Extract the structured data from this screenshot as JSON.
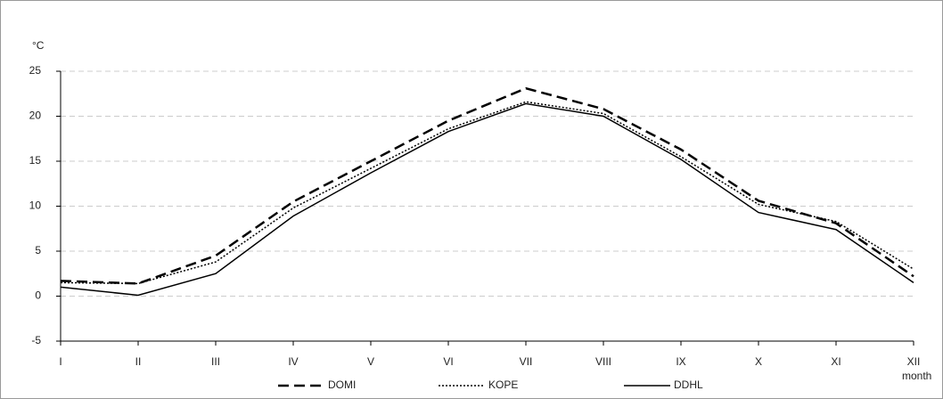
{
  "chart_data": {
    "type": "line",
    "y_label": "°C",
    "x_label": "month",
    "categories": [
      "I",
      "II",
      "III",
      "IV",
      "V",
      "VI",
      "VII",
      "VIII",
      "IX",
      "X",
      "XI",
      "XII"
    ],
    "series": [
      {
        "name": "DOMI",
        "color": "#000000",
        "dash": "dashed",
        "values": [
          1.7,
          1.4,
          4.5,
          10.5,
          15,
          19.5,
          23.1,
          20.8,
          16.3,
          10.6,
          8.1,
          2.2
        ]
      },
      {
        "name": "KOPE",
        "color": "#000000",
        "dash": "dotted",
        "values": [
          1.5,
          1.4,
          3.8,
          9.8,
          14.2,
          18.6,
          21.6,
          20.3,
          15.5,
          10.2,
          8.3,
          3.0
        ]
      },
      {
        "name": "DDHL",
        "color": "#000000",
        "dash": "solid",
        "values": [
          1.0,
          0.1,
          2.5,
          8.9,
          13.7,
          18.3,
          21.4,
          20.0,
          15.2,
          9.3,
          7.4,
          1.5
        ]
      }
    ],
    "ylim": [
      -5,
      25
    ],
    "yticks": [
      -5,
      0,
      5,
      10,
      15,
      20,
      25
    ],
    "grid": true,
    "legend": "bottom"
  }
}
